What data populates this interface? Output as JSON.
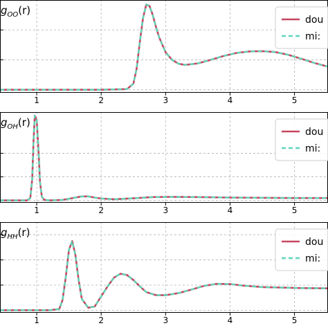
{
  "colors": {
    "solid": "#c7455f",
    "dashed": "#5fd6b9",
    "grid": "#b0b0b0",
    "axis": "#000000"
  },
  "chart_data": [
    {
      "type": "line",
      "ylabel_main": "g",
      "ylabel_sub": "OO",
      "ylabel_tail": "(r)",
      "xlim": [
        0.43,
        5.52
      ],
      "ylim": [
        -0.1,
        3.0
      ],
      "xticks": [
        1,
        2,
        3,
        4,
        5
      ],
      "xtick_labels": [
        "1",
        "2",
        "3",
        "4",
        "5"
      ],
      "ygrid": [
        0,
        1,
        2
      ],
      "grid": true,
      "legend_placement": "top-right",
      "series": [
        {
          "name": "dou",
          "style": "solid",
          "x": [
            0.43,
            1.0,
            2.0,
            2.4,
            2.5,
            2.55,
            2.6,
            2.65,
            2.7,
            2.75,
            2.8,
            2.85,
            2.9,
            3.0,
            3.1,
            3.2,
            3.3,
            3.5,
            3.7,
            3.9,
            4.1,
            4.3,
            4.5,
            4.7,
            4.9,
            5.1,
            5.3,
            5.52
          ],
          "y": [
            0,
            0,
            0,
            0.02,
            0.2,
            0.7,
            1.6,
            2.4,
            2.85,
            2.8,
            2.5,
            2.1,
            1.75,
            1.25,
            1.0,
            0.87,
            0.83,
            0.88,
            1.0,
            1.13,
            1.23,
            1.28,
            1.29,
            1.26,
            1.17,
            1.04,
            0.9,
            0.77
          ]
        },
        {
          "name": "mi:",
          "style": "dashed",
          "x": [
            0.43,
            1.0,
            2.0,
            2.4,
            2.5,
            2.55,
            2.6,
            2.65,
            2.7,
            2.75,
            2.8,
            2.85,
            2.9,
            3.0,
            3.1,
            3.2,
            3.3,
            3.5,
            3.7,
            3.9,
            4.1,
            4.3,
            4.5,
            4.7,
            4.9,
            5.1,
            5.3,
            5.52
          ],
          "y": [
            0,
            0,
            0,
            0.02,
            0.2,
            0.7,
            1.6,
            2.4,
            2.85,
            2.8,
            2.5,
            2.1,
            1.75,
            1.25,
            1.0,
            0.87,
            0.83,
            0.88,
            1.0,
            1.13,
            1.23,
            1.28,
            1.29,
            1.26,
            1.17,
            1.04,
            0.9,
            0.77
          ]
        }
      ]
    },
    {
      "type": "line",
      "ylabel_main": "g",
      "ylabel_sub": "OH",
      "ylabel_tail": "(r)",
      "xlim": [
        0.43,
        5.52
      ],
      "ylim": [
        -0.1,
        3.75
      ],
      "xticks": [
        1,
        2,
        3,
        4,
        5
      ],
      "xtick_labels": [
        "1",
        "2",
        "3",
        "4",
        "5"
      ],
      "ygrid": [
        0,
        1,
        2
      ],
      "grid": true,
      "legend_placement": "top-right",
      "series": [
        {
          "name": "dou",
          "style": "solid",
          "x": [
            0.43,
            0.85,
            0.9,
            0.93,
            0.95,
            0.97,
            1.0,
            1.03,
            1.05,
            1.08,
            1.12,
            1.2,
            1.4,
            1.6,
            1.7,
            1.8,
            1.9,
            2.0,
            2.2,
            2.5,
            2.8,
            3.1,
            3.5,
            4.0,
            4.5,
            5.0,
            5.52
          ],
          "y": [
            0,
            0,
            0.1,
            0.9,
            2.5,
            3.6,
            3.4,
            2.0,
            0.8,
            0.15,
            0.02,
            0,
            0.02,
            0.12,
            0.17,
            0.17,
            0.12,
            0.08,
            0.05,
            0.09,
            0.14,
            0.15,
            0.14,
            0.12,
            0.11,
            0.1,
            0.1
          ]
        },
        {
          "name": "mi:",
          "style": "dashed",
          "x": [
            0.43,
            0.85,
            0.9,
            0.93,
            0.95,
            0.97,
            1.0,
            1.03,
            1.05,
            1.08,
            1.12,
            1.2,
            1.4,
            1.6,
            1.7,
            1.8,
            1.9,
            2.0,
            2.2,
            2.5,
            2.8,
            3.1,
            3.5,
            4.0,
            4.5,
            5.0,
            5.52
          ],
          "y": [
            0,
            0,
            0.1,
            0.9,
            2.5,
            3.6,
            3.4,
            2.0,
            0.8,
            0.15,
            0.02,
            0,
            0.02,
            0.12,
            0.17,
            0.17,
            0.12,
            0.08,
            0.05,
            0.09,
            0.14,
            0.15,
            0.14,
            0.12,
            0.11,
            0.1,
            0.1
          ]
        }
      ]
    },
    {
      "type": "line",
      "ylabel_main": "g",
      "ylabel_sub": "HH",
      "ylabel_tail": "(r)",
      "xlim": [
        0.43,
        5.52
      ],
      "ylim": [
        -0.1,
        3.5
      ],
      "xticks": [
        1,
        2,
        3,
        4,
        5
      ],
      "xtick_labels": [
        "1",
        "2",
        "3",
        "4",
        "5"
      ],
      "ygrid": [
        0,
        1,
        2,
        3
      ],
      "grid": true,
      "legend_placement": "top-right",
      "series": [
        {
          "name": "dou",
          "style": "solid",
          "x": [
            0.43,
            1.2,
            1.35,
            1.4,
            1.45,
            1.5,
            1.55,
            1.6,
            1.65,
            1.7,
            1.8,
            1.9,
            2.0,
            2.1,
            2.2,
            2.3,
            2.4,
            2.5,
            2.6,
            2.7,
            2.85,
            3.0,
            3.2,
            3.4,
            3.6,
            3.8,
            4.0,
            4.2,
            4.5,
            4.8,
            5.1,
            5.52
          ],
          "y": [
            0,
            0,
            0.05,
            0.4,
            1.3,
            2.4,
            2.75,
            2.2,
            1.2,
            0.45,
            0.1,
            0.15,
            0.55,
            0.95,
            1.3,
            1.45,
            1.4,
            1.2,
            0.95,
            0.72,
            0.6,
            0.6,
            0.68,
            0.82,
            0.97,
            1.05,
            1.04,
            0.98,
            0.92,
            0.9,
            0.88,
            0.87
          ]
        },
        {
          "name": "mi:",
          "style": "dashed",
          "x": [
            0.43,
            1.2,
            1.35,
            1.4,
            1.45,
            1.5,
            1.55,
            1.6,
            1.65,
            1.7,
            1.8,
            1.9,
            2.0,
            2.1,
            2.2,
            2.3,
            2.4,
            2.5,
            2.6,
            2.7,
            2.85,
            3.0,
            3.2,
            3.4,
            3.6,
            3.8,
            4.0,
            4.2,
            4.5,
            4.8,
            5.1,
            5.52
          ],
          "y": [
            0,
            0,
            0.05,
            0.4,
            1.3,
            2.4,
            2.75,
            2.2,
            1.2,
            0.45,
            0.1,
            0.15,
            0.55,
            0.95,
            1.3,
            1.45,
            1.4,
            1.2,
            0.95,
            0.72,
            0.6,
            0.6,
            0.68,
            0.82,
            0.97,
            1.05,
            1.04,
            0.98,
            0.92,
            0.9,
            0.88,
            0.87
          ]
        }
      ]
    }
  ]
}
